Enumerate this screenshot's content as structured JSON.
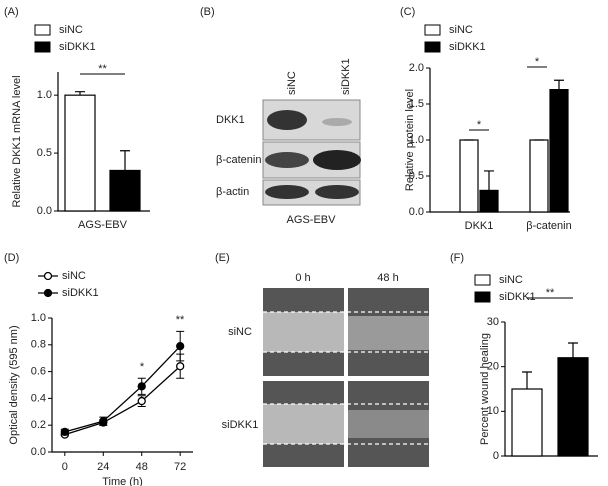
{
  "chart_data": [
    {
      "panel": "(A)",
      "type": "bar",
      "ylabel": "Relative DKK1 mRNA level",
      "categories": [
        "AGS-EBV"
      ],
      "series": [
        {
          "name": "siNC",
          "color": "#ffffff",
          "values": [
            1.0
          ],
          "errors": [
            0.03
          ]
        },
        {
          "name": "siDKK1",
          "color": "#000000",
          "values": [
            0.35
          ],
          "errors": [
            0.17
          ]
        }
      ],
      "ylim": [
        0,
        1.2
      ],
      "yticks": [
        {
          "value": 0,
          "label": "0.0"
        },
        0.5,
        {
          "value": 1,
          "label": "1.0"
        }
      ],
      "annotations": [
        "**"
      ]
    },
    {
      "panel": "(C)",
      "type": "bar",
      "ylabel": "Relative protein level",
      "categories": [
        "DKK1",
        "β-catenin"
      ],
      "series": [
        {
          "name": "siNC",
          "color": "#ffffff",
          "values": [
            1.0,
            1.0
          ],
          "errors": [
            0,
            0
          ]
        },
        {
          "name": "siDKK1",
          "color": "#000000",
          "values": [
            0.3,
            1.7
          ],
          "errors": [
            0.27,
            0.13
          ]
        }
      ],
      "ylim": [
        0,
        2
      ],
      "yticks": [
        {
          "value": 0,
          "label": "0.0"
        },
        0.5,
        {
          "value": 1,
          "label": "1.0"
        },
        1.5,
        {
          "value": 2,
          "label": "2.0"
        }
      ],
      "annotations": [
        "*",
        "*"
      ]
    },
    {
      "panel": "(D)",
      "type": "line",
      "xlabel": "Time (h)",
      "ylabel": "Optical density (595 nm)",
      "x": [
        0,
        24,
        48,
        72
      ],
      "series": [
        {
          "name": "siNC",
          "color": "#ffffff",
          "values": [
            0.13,
            0.22,
            0.38,
            0.64
          ],
          "errors": [
            0.01,
            0.02,
            0.04,
            0.09
          ]
        },
        {
          "name": "siDKK1",
          "color": "#000000",
          "values": [
            0.15,
            0.23,
            0.49,
            0.79
          ],
          "errors": [
            0.02,
            0.03,
            0.06,
            0.11
          ]
        }
      ],
      "xlim": [
        -8,
        80
      ],
      "xticks": [
        0,
        24,
        48,
        72
      ],
      "ylim": [
        0,
        1
      ],
      "yticks": [
        {
          "value": 0,
          "label": "0.0"
        },
        0.2,
        0.4,
        0.6,
        0.8,
        {
          "value": 1,
          "label": "1.0"
        }
      ],
      "annotations": [
        "*",
        "**"
      ]
    },
    {
      "panel": "(F)",
      "type": "bar",
      "ylabel": "Percent wound healing",
      "series": [
        {
          "name": "siNC",
          "color": "#ffffff",
          "values": [
            15
          ],
          "errors": [
            3.8
          ]
        },
        {
          "name": "siDKK1",
          "color": "#000000",
          "values": [
            22
          ],
          "errors": [
            3.3
          ]
        }
      ],
      "ylim": [
        0,
        30
      ],
      "yticks": [
        0,
        10,
        20,
        30
      ],
      "annotations": [
        "**"
      ]
    }
  ],
  "blot": {
    "panel": "(B)",
    "columns": [
      "siNC",
      "siDKK1"
    ],
    "rows": [
      "DKK1",
      "β-catenin",
      "β-actin"
    ],
    "caption": "AGS-EBV"
  },
  "wound": {
    "panel": "(E)",
    "columns": [
      "0 h",
      "48 h"
    ],
    "rows": [
      "siNC",
      "siDKK1"
    ]
  }
}
